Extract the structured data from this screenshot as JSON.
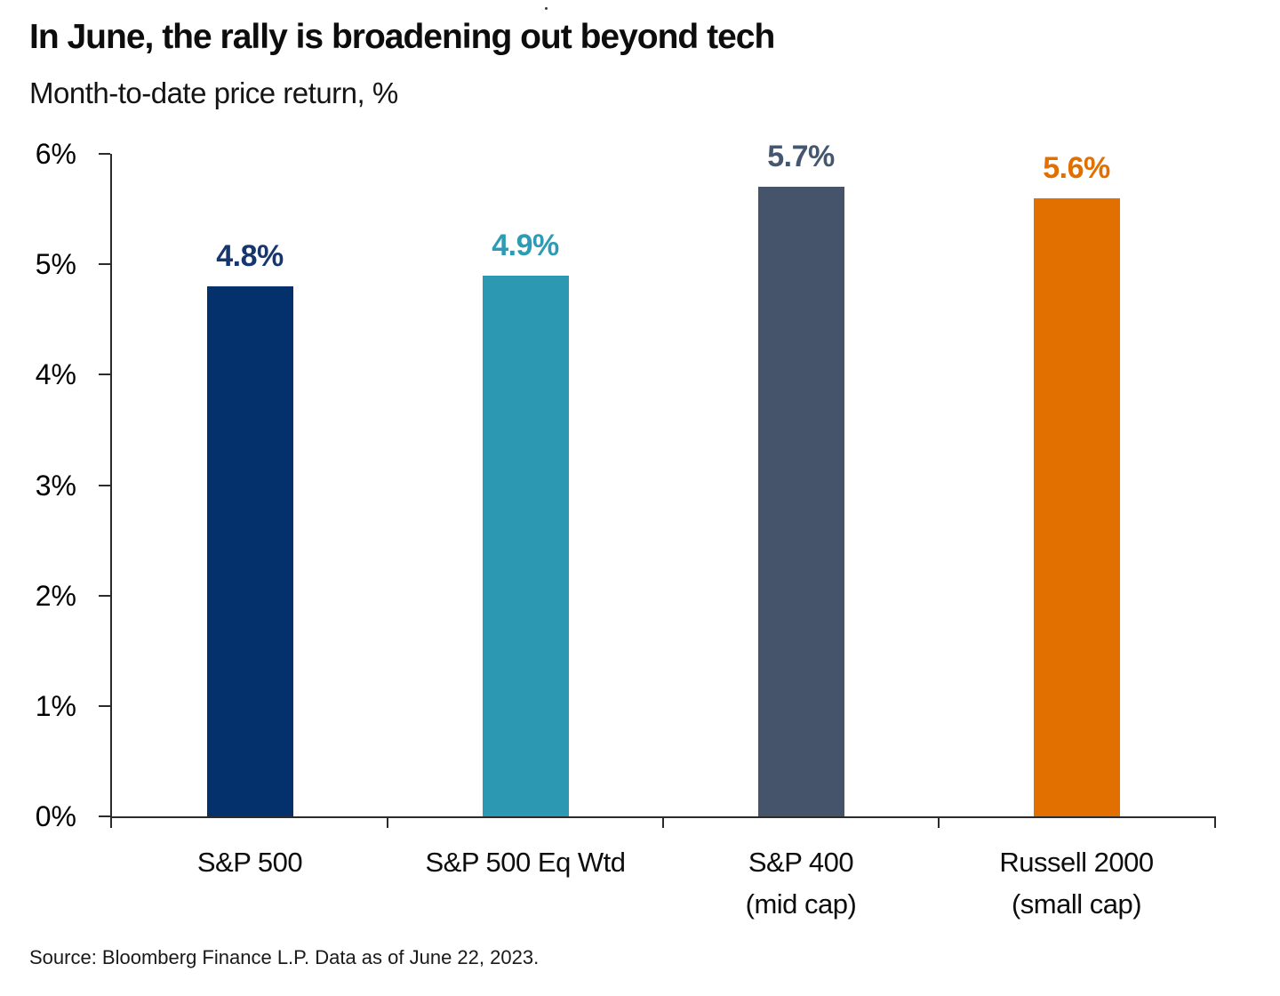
{
  "header": {
    "title": "In June, the rally is broadening out beyond tech",
    "subtitle": "Month-to-date price return, %"
  },
  "footer": {
    "source": "Source: Bloomberg Finance L.P. Data as of June 22, 2023."
  },
  "chart_data": {
    "type": "bar",
    "title": "In June, the rally is broadening out beyond tech",
    "subtitle": "Month-to-date price return, %",
    "categories": [
      "S&P 500",
      "S&P 500 Eq Wtd",
      "S&P 400 (mid cap)",
      "Russell 2000 (small cap)"
    ],
    "category_lines": [
      [
        "S&P 500"
      ],
      [
        "S&P 500 Eq Wtd"
      ],
      [
        "S&P 400",
        "(mid cap)"
      ],
      [
        "Russell 2000",
        "(small cap)"
      ]
    ],
    "values": [
      4.8,
      4.9,
      5.7,
      5.6
    ],
    "value_labels": [
      "4.8%",
      "4.9%",
      "5.7%",
      "5.6%"
    ],
    "bar_colors": [
      "#04306B",
      "#2C98B2",
      "#45536B",
      "#E17000"
    ],
    "value_label_colors": [
      "#17366E",
      "#2E9BB5",
      "#45576E",
      "#E17000"
    ],
    "xlabel": "",
    "ylabel": "Month-to-date price return, %",
    "ylim": [
      0,
      6
    ],
    "ytick_labels": [
      "0%",
      "1%",
      "2%",
      "3%",
      "4%",
      "5%",
      "6%"
    ],
    "grid": false,
    "legend": false,
    "axis_color": "#2b2b2b"
  }
}
